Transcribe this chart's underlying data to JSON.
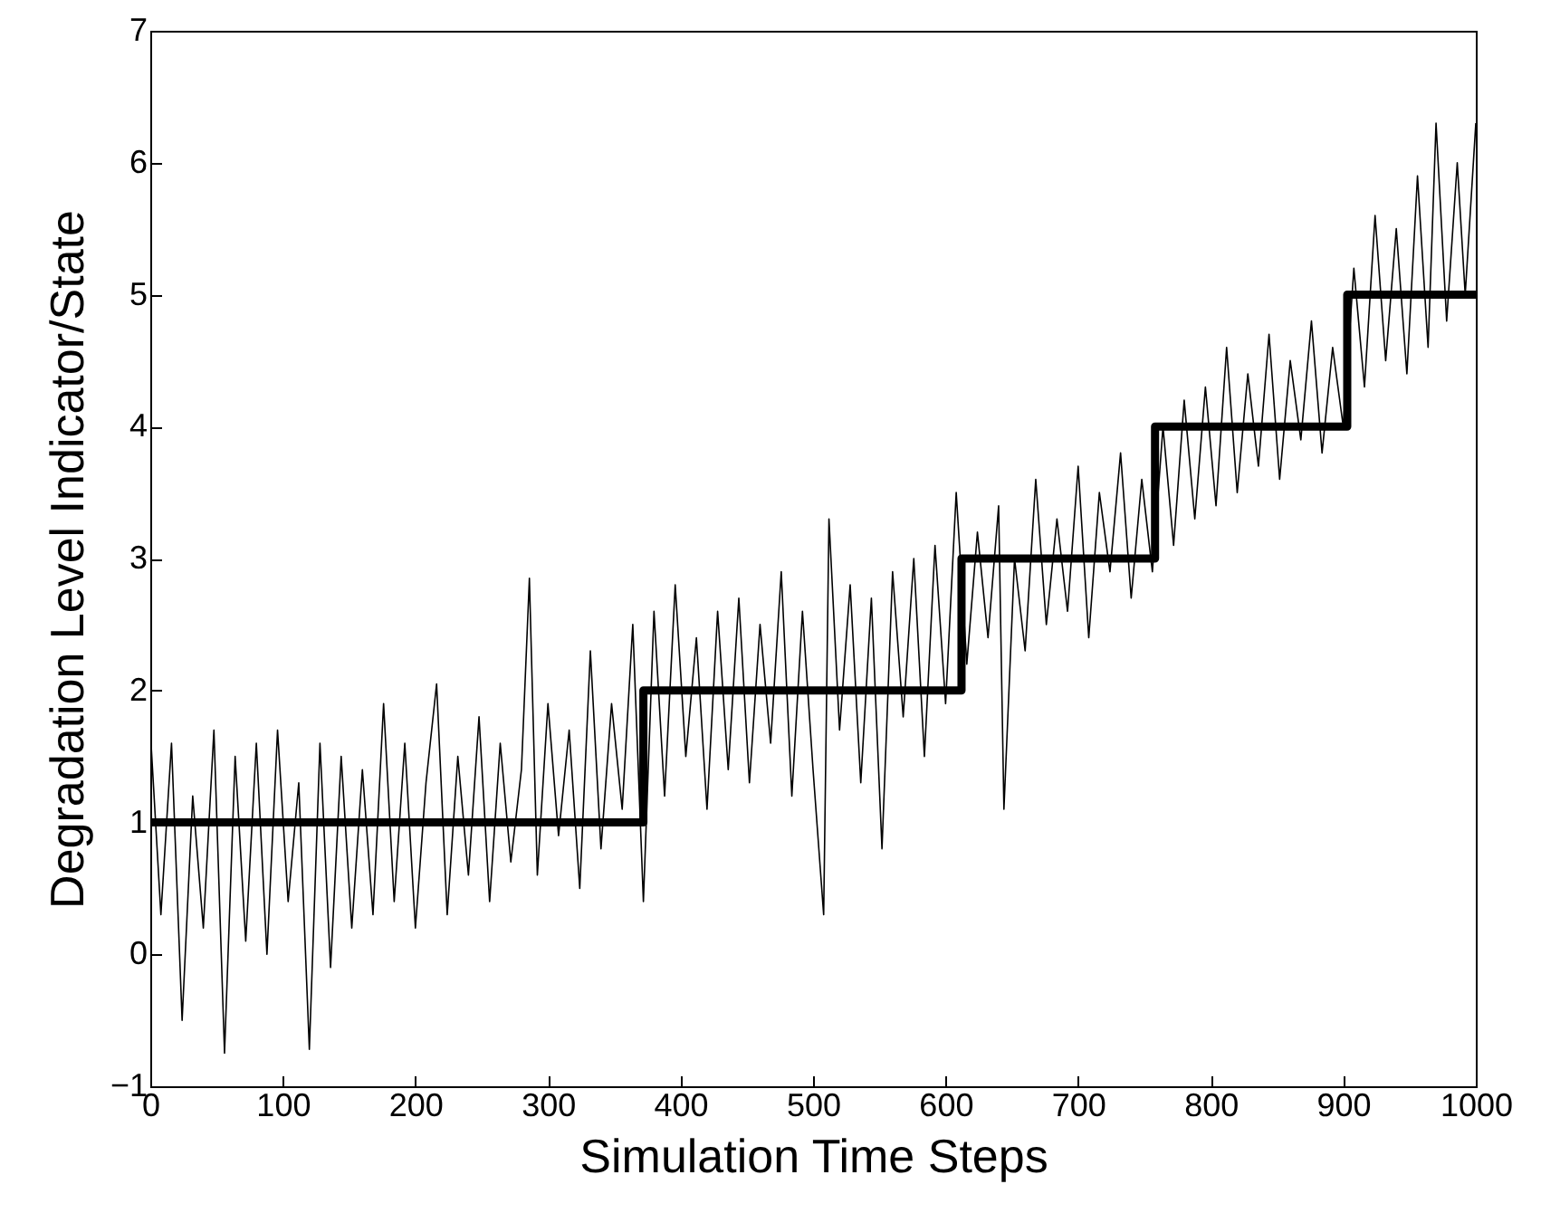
{
  "chart_data": {
    "type": "line",
    "xlabel": "Simulation Time Steps",
    "ylabel": "Degradation Level Indicator/State",
    "xlim": [
      0,
      1000
    ],
    "ylim": [
      -1,
      7
    ],
    "xticks": [
      0,
      100,
      200,
      300,
      400,
      500,
      600,
      700,
      800,
      900,
      1000
    ],
    "yticks": [
      -1,
      0,
      1,
      2,
      3,
      4,
      5,
      6,
      7
    ],
    "grid": false,
    "marker": "none",
    "line_style": "solid",
    "series": [
      {
        "type": "line",
        "color": "#000000",
        "x": [
          0,
          8,
          16,
          24,
          32,
          40,
          48,
          56,
          64,
          72,
          80,
          88,
          96,
          104,
          112,
          120,
          128,
          136,
          144,
          152,
          160,
          168,
          176,
          184,
          192,
          200,
          208,
          216,
          224,
          232,
          240,
          248,
          256,
          264,
          272,
          280,
          286,
          292,
          300,
          308,
          316,
          324,
          332,
          340,
          348,
          356,
          364,
          372,
          380,
          388,
          396,
          404,
          412,
          420,
          428,
          436,
          444,
          452,
          460,
          468,
          476,
          484,
          492,
          500,
          508,
          512,
          520,
          528,
          536,
          544,
          552,
          560,
          568,
          576,
          584,
          592,
          600,
          608,
          616,
          624,
          632,
          640,
          644,
          652,
          660,
          668,
          676,
          684,
          692,
          700,
          708,
          716,
          724,
          732,
          740,
          748,
          756,
          764,
          772,
          780,
          788,
          796,
          804,
          812,
          820,
          828,
          836,
          844,
          852,
          860,
          868,
          876,
          884,
          892,
          900,
          908,
          916,
          924,
          932,
          940,
          948,
          956,
          964,
          970,
          978,
          986,
          992,
          1000
        ],
        "values": [
          1.7,
          0.3,
          1.6,
          -0.5,
          1.2,
          0.2,
          1.7,
          -0.75,
          1.5,
          0.1,
          1.6,
          0.0,
          1.7,
          0.4,
          1.3,
          -0.72,
          1.6,
          -0.1,
          1.5,
          0.2,
          1.4,
          0.3,
          1.9,
          0.4,
          1.6,
          0.2,
          1.3,
          2.05,
          0.3,
          1.5,
          0.6,
          1.8,
          0.4,
          1.6,
          0.7,
          1.4,
          2.85,
          0.6,
          1.9,
          0.9,
          1.7,
          0.5,
          2.3,
          0.8,
          1.9,
          1.1,
          2.5,
          0.4,
          2.6,
          1.2,
          2.8,
          1.5,
          2.4,
          1.1,
          2.6,
          1.4,
          2.7,
          1.3,
          2.5,
          1.6,
          2.9,
          1.2,
          2.6,
          1.4,
          0.3,
          3.3,
          1.7,
          2.8,
          1.3,
          2.7,
          0.8,
          2.9,
          1.8,
          3.0,
          1.5,
          3.1,
          1.9,
          3.5,
          2.2,
          3.2,
          2.4,
          3.4,
          1.1,
          3.0,
          2.3,
          3.6,
          2.5,
          3.3,
          2.6,
          3.7,
          2.4,
          3.5,
          2.9,
          3.8,
          2.7,
          3.6,
          2.9,
          4.0,
          3.1,
          4.2,
          3.3,
          4.3,
          3.4,
          4.6,
          3.5,
          4.4,
          3.7,
          4.7,
          3.6,
          4.5,
          3.9,
          4.8,
          3.8,
          4.6,
          4.0,
          5.2,
          4.3,
          5.6,
          4.5,
          5.5,
          4.4,
          5.9,
          4.6,
          6.3,
          4.8,
          6.0,
          5.0,
          6.3
        ]
      },
      {
        "type": "step",
        "color": "#000000",
        "x": [
          0,
          372,
          612,
          758,
          903,
          1000
        ],
        "values": [
          1,
          2,
          3,
          4,
          5,
          5
        ]
      }
    ]
  }
}
